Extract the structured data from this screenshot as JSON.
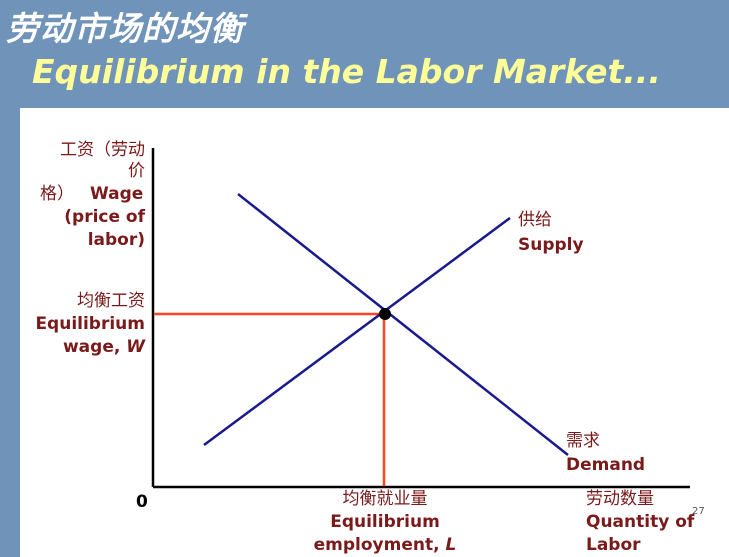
{
  "slide": {
    "title_cn": "劳动市场的均衡",
    "title_en": "Equilibrium in the Labor Market...",
    "page_number": "27"
  },
  "diagram": {
    "y_axis": {
      "label_cn_1": "工资（劳动",
      "label_cn_2": "价",
      "label_cn_3": "格）",
      "label_en_1": "Wage",
      "label_en_2": "(price of",
      "label_en_3": "labor)"
    },
    "x_axis": {
      "label_cn": "劳动数量",
      "label_en_1": "Quantity of",
      "label_en_2": "Labor"
    },
    "origin": "0",
    "equilibrium_wage": {
      "label_cn": "均衡工资",
      "label_en_1": "Equilibrium",
      "label_en_2": "wage,",
      "symbol": "W"
    },
    "equilibrium_employment": {
      "label_cn": "均衡就业量",
      "label_en_1": "Equilibrium",
      "label_en_2": "employment,",
      "symbol": "L"
    },
    "supply": {
      "label_cn": "供给",
      "label_en": "Supply"
    },
    "demand": {
      "label_cn": "需求",
      "label_en": "Demand"
    },
    "colors": {
      "curves": "#1a1a8c",
      "guides": "#ff4422",
      "axis": "#000000",
      "label": "#7a1a1a"
    }
  }
}
